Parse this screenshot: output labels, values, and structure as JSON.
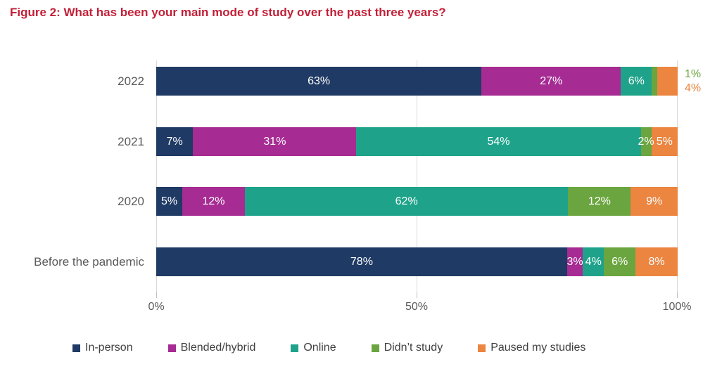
{
  "title": "Figure 2: What has been your main mode of study over the past three years?",
  "chart_data": {
    "type": "bar",
    "orientation": "horizontal",
    "stacked": true,
    "title": "Figure 2: What has been your main mode of study over the past three years?",
    "categories": [
      "2022",
      "2021",
      "2020",
      "Before the pandemic"
    ],
    "series": [
      {
        "name": "In-person",
        "color": "#1F3A64",
        "values": [
          63,
          7,
          5,
          78
        ]
      },
      {
        "name": "Blended/hybrid",
        "color": "#A62B93",
        "values": [
          27,
          31,
          12,
          3
        ]
      },
      {
        "name": "Online",
        "color": "#1EA38A",
        "values": [
          6,
          54,
          62,
          4
        ]
      },
      {
        "name": "Didn’t study",
        "color": "#6BA53F",
        "values": [
          1,
          2,
          12,
          6
        ]
      },
      {
        "name": "Paused my studies",
        "color": "#EB8540",
        "values": [
          4,
          5,
          9,
          8
        ]
      }
    ],
    "rows": [
      {
        "category": "2022",
        "segments": [
          {
            "series": "In-person",
            "value": 63,
            "label": "63%",
            "show_inside": true
          },
          {
            "series": "Blended/hybrid",
            "value": 27,
            "label": "27%",
            "show_inside": true
          },
          {
            "series": "Online",
            "value": 6,
            "label": "6%",
            "show_inside": true
          },
          {
            "series": "Didn’t study",
            "value": 1,
            "label": "1%",
            "show_inside": false
          },
          {
            "series": "Paused my studies",
            "value": 4,
            "label": "4%",
            "show_inside": false
          }
        ],
        "outside_labels": [
          {
            "text": "1%",
            "series": "Didn’t study"
          },
          {
            "text": "4%",
            "series": "Paused my studies"
          }
        ]
      },
      {
        "category": "2021",
        "segments": [
          {
            "series": "In-person",
            "value": 7,
            "label": "7%",
            "show_inside": true
          },
          {
            "series": "Blended/hybrid",
            "value": 31,
            "label": "31%",
            "show_inside": true
          },
          {
            "series": "Online",
            "value": 54,
            "label": "54%",
            "show_inside": true
          },
          {
            "series": "Didn’t study",
            "value": 2,
            "label": "2%",
            "show_inside": true
          },
          {
            "series": "Paused my studies",
            "value": 5,
            "label": "5%",
            "show_inside": true
          }
        ],
        "outside_labels": []
      },
      {
        "category": "2020",
        "segments": [
          {
            "series": "In-person",
            "value": 5,
            "label": "5%",
            "show_inside": true
          },
          {
            "series": "Blended/hybrid",
            "value": 12,
            "label": "12%",
            "show_inside": true
          },
          {
            "series": "Online",
            "value": 62,
            "label": "62%",
            "show_inside": true
          },
          {
            "series": "Didn’t study",
            "value": 12,
            "label": "12%",
            "show_inside": true
          },
          {
            "series": "Paused my studies",
            "value": 9,
            "label": "9%",
            "show_inside": true
          }
        ],
        "outside_labels": []
      },
      {
        "category": "Before the pandemic",
        "segments": [
          {
            "series": "In-person",
            "value": 78,
            "label": "78%",
            "show_inside": true
          },
          {
            "series": "Blended/hybrid",
            "value": 3,
            "label": "3%",
            "show_inside": true
          },
          {
            "series": "Online",
            "value": 4,
            "label": "4%",
            "show_inside": true
          },
          {
            "series": "Didn’t study",
            "value": 6,
            "label": "6%",
            "show_inside": true
          },
          {
            "series": "Paused my studies",
            "value": 8,
            "label": "8%",
            "show_inside": true
          }
        ],
        "outside_labels": []
      }
    ],
    "x_ticks": [
      {
        "label": "0%",
        "pct": 0
      },
      {
        "label": "50%",
        "pct": 50
      },
      {
        "label": "100%",
        "pct": 100
      }
    ],
    "xlim": [
      0,
      100
    ],
    "grid": true,
    "legend_position": "bottom"
  },
  "colors": {
    "title": "#C21F37",
    "axis_text": "#595959",
    "gridline": "#D9D9D9",
    "bar_label": "#FFFFFF"
  }
}
